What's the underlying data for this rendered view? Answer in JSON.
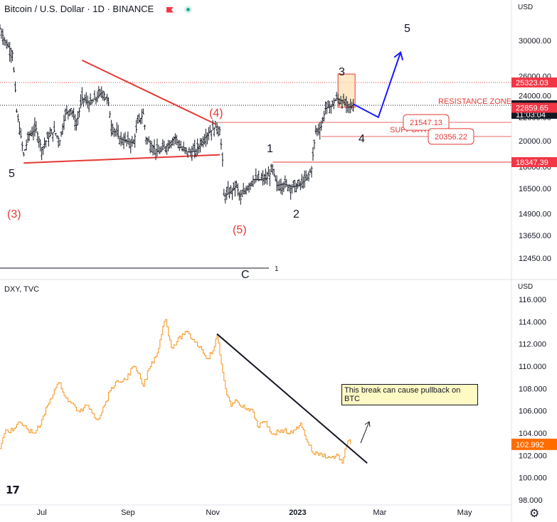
{
  "header": {
    "title": "Bitcoin / U.S. Dollar · 1D · BINANCE",
    "flag_icon": "flag-icon",
    "market_status_icon": "market-open-icon"
  },
  "lower_header": {
    "title": "DXY, TVC"
  },
  "axis": {
    "currency_top": "USD",
    "currency_bottom": "USD"
  },
  "colors": {
    "btc_bar": "#131722",
    "dxy_line": "#f7931a",
    "red": "#e53935",
    "blue": "#1a1aff",
    "label_bg_red": "#f23645",
    "label_bg_dxy": "#ff6d00",
    "black_label": "#131722"
  },
  "chart_data": [
    {
      "type": "bar",
      "subtype": "ohlc-approx",
      "title": "Bitcoin / U.S. Dollar · 1D · BINANCE",
      "y_scale": "log",
      "ylim": [
        12000,
        34000
      ],
      "y_ticks": [
        30000,
        26000,
        24000,
        22000,
        20000,
        18000,
        16500,
        14900,
        13650,
        12450
      ],
      "x_ticks": [
        "Jul",
        "Sep",
        "Nov",
        "2023",
        "Mar",
        "May"
      ],
      "close_path": [
        {
          "x": "2022-06-01",
          "y": 31500
        },
        {
          "x": "2022-06-05",
          "y": 29800
        },
        {
          "x": "2022-06-10",
          "y": 28500
        },
        {
          "x": "2022-06-13",
          "y": 22500
        },
        {
          "x": "2022-06-18",
          "y": 18900
        },
        {
          "x": "2022-06-22",
          "y": 20500
        },
        {
          "x": "2022-06-27",
          "y": 21000
        },
        {
          "x": "2022-07-01",
          "y": 19300
        },
        {
          "x": "2022-07-05",
          "y": 20200
        },
        {
          "x": "2022-07-10",
          "y": 20800
        },
        {
          "x": "2022-07-14",
          "y": 20000
        },
        {
          "x": "2022-07-18",
          "y": 22300
        },
        {
          "x": "2022-07-22",
          "y": 22800
        },
        {
          "x": "2022-07-26",
          "y": 21300
        },
        {
          "x": "2022-07-30",
          "y": 23800
        },
        {
          "x": "2022-08-05",
          "y": 23200
        },
        {
          "x": "2022-08-10",
          "y": 23900
        },
        {
          "x": "2022-08-14",
          "y": 24400
        },
        {
          "x": "2022-08-18",
          "y": 23300
        },
        {
          "x": "2022-08-20",
          "y": 21300
        },
        {
          "x": "2022-08-26",
          "y": 20200
        },
        {
          "x": "2022-08-30",
          "y": 20000
        },
        {
          "x": "2022-09-05",
          "y": 19800
        },
        {
          "x": "2022-09-08",
          "y": 21500
        },
        {
          "x": "2022-09-12",
          "y": 22300
        },
        {
          "x": "2022-09-14",
          "y": 20200
        },
        {
          "x": "2022-09-19",
          "y": 19500
        },
        {
          "x": "2022-09-23",
          "y": 19100
        },
        {
          "x": "2022-09-28",
          "y": 19500
        },
        {
          "x": "2022-10-05",
          "y": 20300
        },
        {
          "x": "2022-10-10",
          "y": 19300
        },
        {
          "x": "2022-10-15",
          "y": 19100
        },
        {
          "x": "2022-10-20",
          "y": 19200
        },
        {
          "x": "2022-10-25",
          "y": 20100
        },
        {
          "x": "2022-10-29",
          "y": 20700
        },
        {
          "x": "2022-11-04",
          "y": 21200
        },
        {
          "x": "2022-11-06",
          "y": 20900
        },
        {
          "x": "2022-11-08",
          "y": 18500
        },
        {
          "x": "2022-11-09",
          "y": 16000
        },
        {
          "x": "2022-11-14",
          "y": 16300
        },
        {
          "x": "2022-11-18",
          "y": 16700
        },
        {
          "x": "2022-11-21",
          "y": 15800
        },
        {
          "x": "2022-11-25",
          "y": 16500
        },
        {
          "x": "2022-11-30",
          "y": 17100
        },
        {
          "x": "2022-12-05",
          "y": 17100
        },
        {
          "x": "2022-12-10",
          "y": 17200
        },
        {
          "x": "2022-12-14",
          "y": 17800
        },
        {
          "x": "2022-12-17",
          "y": 16700
        },
        {
          "x": "2022-12-22",
          "y": 16800
        },
        {
          "x": "2022-12-28",
          "y": 16600
        },
        {
          "x": "2023-01-02",
          "y": 16700
        },
        {
          "x": "2023-01-08",
          "y": 17200
        },
        {
          "x": "2023-01-11",
          "y": 17900
        },
        {
          "x": "2023-01-14",
          "y": 20800
        },
        {
          "x": "2023-01-18",
          "y": 21200
        },
        {
          "x": "2023-01-21",
          "y": 22800
        },
        {
          "x": "2023-01-25",
          "y": 23000
        },
        {
          "x": "2023-01-29",
          "y": 23700
        },
        {
          "x": "2023-02-02",
          "y": 23500
        },
        {
          "x": "2023-02-06",
          "y": 22900
        },
        {
          "x": "2023-02-10",
          "y": 23100
        }
      ],
      "price_labels": [
        {
          "value": 25323.03,
          "text": "25323.03",
          "style": "red"
        },
        {
          "value": 23089.98,
          "text": "23089.98",
          "sub": "11:03:04",
          "style": "black"
        },
        {
          "value": 22859.65,
          "text": "22859.65",
          "style": "red"
        },
        {
          "value": 18347.39,
          "text": "18347.39",
          "style": "red"
        }
      ],
      "callouts": [
        {
          "value": 21547.13,
          "text": "21547.13"
        },
        {
          "value": 20356.22,
          "text": "20356.22"
        }
      ],
      "annotations": {
        "resistance": "RESISTANCE ZONE",
        "support": "SUPPORT",
        "wave_black": [
          "5",
          "1",
          "2",
          "3",
          "4",
          "5"
        ],
        "wave_red": [
          "(3)",
          "(4)",
          "(5)"
        ],
        "partial_c": "C",
        "partial_1": "1"
      }
    },
    {
      "type": "line",
      "subtype": "step",
      "title": "DXY, TVC",
      "ylim": [
        98,
        117
      ],
      "y_ticks": [
        116.0,
        114.0,
        112.0,
        110.0,
        108.0,
        106.0,
        104.0,
        102.0,
        100.0,
        98.0
      ],
      "series": [
        {
          "name": "DXY",
          "points": [
            {
              "x": "2022-06-01",
              "y": 102.6
            },
            {
              "x": "2022-06-05",
              "y": 104.3
            },
            {
              "x": "2022-06-10",
              "y": 104.2
            },
            {
              "x": "2022-06-15",
              "y": 105.0
            },
            {
              "x": "2022-06-20",
              "y": 104.4
            },
            {
              "x": "2022-06-25",
              "y": 104.0
            },
            {
              "x": "2022-06-30",
              "y": 104.7
            },
            {
              "x": "2022-07-05",
              "y": 106.5
            },
            {
              "x": "2022-07-10",
              "y": 107.9
            },
            {
              "x": "2022-07-14",
              "y": 108.5
            },
            {
              "x": "2022-07-18",
              "y": 107.2
            },
            {
              "x": "2022-07-22",
              "y": 106.7
            },
            {
              "x": "2022-07-28",
              "y": 105.9
            },
            {
              "x": "2022-08-03",
              "y": 106.5
            },
            {
              "x": "2022-08-10",
              "y": 105.2
            },
            {
              "x": "2022-08-15",
              "y": 106.5
            },
            {
              "x": "2022-08-20",
              "y": 108.1
            },
            {
              "x": "2022-08-25",
              "y": 108.6
            },
            {
              "x": "2022-08-30",
              "y": 108.8
            },
            {
              "x": "2022-09-05",
              "y": 110.0
            },
            {
              "x": "2022-09-08",
              "y": 109.4
            },
            {
              "x": "2022-09-12",
              "y": 108.2
            },
            {
              "x": "2022-09-16",
              "y": 109.8
            },
            {
              "x": "2022-09-22",
              "y": 111.2
            },
            {
              "x": "2022-09-26",
              "y": 113.6
            },
            {
              "x": "2022-09-28",
              "y": 114.2
            },
            {
              "x": "2022-10-02",
              "y": 111.7
            },
            {
              "x": "2022-10-06",
              "y": 112.2
            },
            {
              "x": "2022-10-12",
              "y": 113.1
            },
            {
              "x": "2022-10-18",
              "y": 112.4
            },
            {
              "x": "2022-10-24",
              "y": 111.5
            },
            {
              "x": "2022-10-28",
              "y": 110.7
            },
            {
              "x": "2022-11-01",
              "y": 111.4
            },
            {
              "x": "2022-11-04",
              "y": 112.8
            },
            {
              "x": "2022-11-07",
              "y": 110.2
            },
            {
              "x": "2022-11-10",
              "y": 108.0
            },
            {
              "x": "2022-11-14",
              "y": 106.4
            },
            {
              "x": "2022-11-18",
              "y": 106.9
            },
            {
              "x": "2022-11-25",
              "y": 106.1
            },
            {
              "x": "2022-11-30",
              "y": 105.9
            },
            {
              "x": "2022-12-03",
              "y": 104.6
            },
            {
              "x": "2022-12-08",
              "y": 105.0
            },
            {
              "x": "2022-12-14",
              "y": 103.9
            },
            {
              "x": "2022-12-20",
              "y": 104.3
            },
            {
              "x": "2022-12-28",
              "y": 104.0
            },
            {
              "x": "2023-01-03",
              "y": 104.9
            },
            {
              "x": "2023-01-06",
              "y": 103.8
            },
            {
              "x": "2023-01-12",
              "y": 102.2
            },
            {
              "x": "2023-01-18",
              "y": 102.1
            },
            {
              "x": "2023-01-24",
              "y": 101.8
            },
            {
              "x": "2023-01-30",
              "y": 102.0
            },
            {
              "x": "2023-02-02",
              "y": 101.3
            },
            {
              "x": "2023-02-05",
              "y": 102.9
            },
            {
              "x": "2023-02-07",
              "y": 103.4
            },
            {
              "x": "2023-02-08",
              "y": 102.992
            }
          ]
        }
      ],
      "last_value_label": "102.992",
      "annotation": "This break can cause pullback on BTC"
    }
  ]
}
